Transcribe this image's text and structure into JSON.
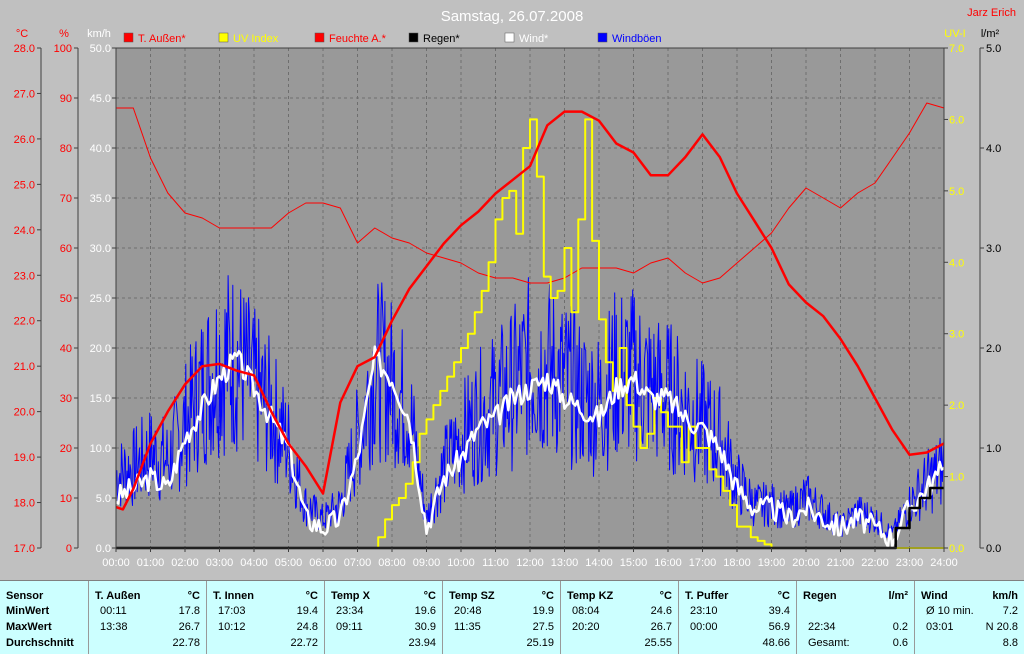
{
  "title": "Samstag, 26.07.2008",
  "author": "Jarz Erich",
  "legend": [
    {
      "label": "T. Außen*",
      "color": "#ff0000"
    },
    {
      "label": "UV Index",
      "color": "#ffff00"
    },
    {
      "label": "Feuchte A.*",
      "color": "#ff0000"
    },
    {
      "label": "Regen*",
      "color": "#000000"
    },
    {
      "label": "Wind*",
      "color": "#ffffff"
    },
    {
      "label": "Windböen",
      "color": "#0000ff"
    }
  ],
  "axes": {
    "temp": {
      "unit": "°C",
      "min": 17,
      "max": 28,
      "ticks": [
        "17.0",
        "18.0",
        "19.0",
        "20.0",
        "21.0",
        "22.0",
        "23.0",
        "24.0",
        "25.0",
        "26.0",
        "27.0",
        "28.0"
      ],
      "color": "#ff0000"
    },
    "hum": {
      "unit": "%",
      "min": 0,
      "max": 100,
      "ticks": [
        "0",
        "10",
        "20",
        "30",
        "40",
        "50",
        "60",
        "70",
        "80",
        "90",
        "100"
      ],
      "color": "#ff0000"
    },
    "wind": {
      "unit": "km/h",
      "min": 0,
      "max": 50,
      "ticks": [
        "0.0",
        "5.0",
        "10.0",
        "15.0",
        "20.0",
        "25.0",
        "30.0",
        "35.0",
        "40.0",
        "45.0",
        "50.0"
      ],
      "color": "#ffffff"
    },
    "uv": {
      "unit": "UV-I",
      "min": 0,
      "max": 7,
      "ticks": [
        "0.0",
        "1.0",
        "2.0",
        "3.0",
        "4.0",
        "5.0",
        "6.0",
        "7.0"
      ],
      "color": "#ffff00"
    },
    "rain": {
      "unit": "l/m²",
      "min": 0,
      "max": 5,
      "ticks": [
        "0.0",
        "1.0",
        "2.0",
        "3.0",
        "4.0",
        "5.0"
      ],
      "color": "#000000"
    },
    "x_ticks": [
      "00:00",
      "01:00",
      "02:00",
      "03:00",
      "04:00",
      "05:00",
      "06:00",
      "07:00",
      "08:00",
      "09:00",
      "10:00",
      "11:00",
      "12:00",
      "13:00",
      "14:00",
      "15:00",
      "16:00",
      "17:00",
      "18:00",
      "19:00",
      "20:00",
      "21:00",
      "22:00",
      "23:00",
      "24:00"
    ]
  },
  "chart_data": {
    "type": "line",
    "x_unit": "hour",
    "grid": true,
    "series": [
      {
        "name": "T. Außen*",
        "axis": "temp",
        "color": "#ff0000",
        "width": 2.5,
        "x": [
          0,
          0.2,
          0.5,
          1,
          1.5,
          2,
          2.5,
          3,
          3.5,
          4,
          4.5,
          5,
          5.5,
          6,
          6.5,
          7,
          7.5,
          8,
          8.5,
          9,
          9.5,
          10,
          10.5,
          11,
          11.5,
          12,
          12.5,
          13,
          13.5,
          14,
          14.5,
          15,
          15.5,
          16,
          16.5,
          17,
          17.5,
          18,
          18.5,
          19,
          19.5,
          20,
          20.5,
          21,
          21.5,
          22,
          22.5,
          23,
          23.5,
          24
        ],
        "y": [
          17.9,
          17.85,
          18.3,
          19.3,
          20.0,
          20.6,
          21.0,
          21.05,
          20.9,
          20.8,
          20.0,
          19.3,
          18.8,
          18.2,
          20.2,
          21.0,
          21.2,
          22.0,
          22.7,
          23.2,
          23.7,
          24.1,
          24.4,
          24.8,
          25.1,
          25.4,
          26.3,
          26.6,
          26.6,
          26.4,
          25.9,
          25.7,
          25.2,
          25.2,
          25.6,
          26.1,
          25.6,
          24.8,
          24.2,
          23.6,
          22.8,
          22.4,
          22.1,
          21.6,
          21.0,
          20.3,
          19.6,
          19.05,
          19.1,
          19.3
        ]
      },
      {
        "name": "Feuchte A.*",
        "axis": "hum",
        "color": "#ff0000",
        "width": 1,
        "x": [
          0,
          0.5,
          1,
          1.5,
          2,
          2.5,
          3,
          3.5,
          4,
          4.5,
          5,
          5.5,
          6,
          6.5,
          7,
          7.5,
          8,
          8.5,
          9,
          9.5,
          10,
          10.5,
          11,
          11.5,
          12,
          12.5,
          13,
          13.5,
          14,
          14.5,
          15,
          15.5,
          16,
          16.5,
          17,
          17.5,
          18,
          18.5,
          19,
          19.5,
          20,
          20.5,
          21,
          21.5,
          22,
          22.5,
          23,
          23.5,
          24
        ],
        "y": [
          88,
          88,
          78,
          71,
          67,
          66,
          64,
          64,
          64,
          64,
          67,
          69,
          69,
          68,
          61,
          64,
          62,
          61,
          59,
          58,
          57,
          55,
          54,
          54,
          53,
          53,
          54,
          56,
          56,
          56,
          55,
          57,
          58,
          55,
          53,
          54,
          57,
          60,
          63,
          68,
          72,
          70,
          68,
          71,
          73,
          78,
          83,
          89,
          88
        ]
      },
      {
        "name": "Wind*",
        "axis": "wind",
        "color": "#ffffff",
        "width": 2.5,
        "x": [
          0,
          0.5,
          1,
          1.5,
          2,
          2.5,
          3,
          3.5,
          4,
          4.5,
          5,
          5.5,
          6,
          6.5,
          7,
          7.5,
          8,
          8.5,
          9,
          9.5,
          10,
          10.5,
          11,
          11.5,
          12,
          12.5,
          13,
          13.5,
          14,
          14.5,
          15,
          15.5,
          16,
          16.5,
          17,
          17.5,
          18,
          18.5,
          19,
          19.5,
          20,
          20.5,
          21,
          21.5,
          22,
          22.5,
          23,
          23.5,
          24
        ],
        "y": [
          5,
          6,
          7,
          6,
          11,
          14,
          17,
          19,
          16,
          13,
          10,
          3,
          2,
          3,
          9,
          19,
          17,
          13,
          2,
          7,
          9,
          12,
          13,
          15,
          16,
          17,
          15,
          14,
          13,
          16,
          17,
          15,
          15,
          13,
          12,
          10,
          6,
          4,
          4,
          3,
          4,
          3,
          2,
          3,
          2,
          1,
          4,
          6,
          8
        ]
      },
      {
        "name": "UV Index",
        "axis": "uv",
        "color": "#ffff00",
        "width": 2,
        "step": true,
        "x": [
          0,
          7.4,
          7.6,
          7.8,
          8,
          8.2,
          8.4,
          8.6,
          8.8,
          9,
          9.2,
          9.4,
          9.6,
          9.8,
          10,
          10.2,
          10.4,
          10.6,
          10.8,
          11,
          11.2,
          11.4,
          11.6,
          11.8,
          12,
          12.2,
          12.4,
          12.6,
          12.8,
          13,
          13.2,
          13.4,
          13.6,
          13.8,
          14,
          14.2,
          14.4,
          14.6,
          14.8,
          15,
          15.2,
          15.4,
          15.6,
          15.8,
          16,
          16.2,
          16.4,
          16.6,
          16.8,
          17,
          17.2,
          17.4,
          17.6,
          17.8,
          18,
          18.2,
          18.4,
          18.6,
          18.8,
          19,
          24
        ],
        "y": [
          0,
          0,
          0.15,
          0.4,
          0.6,
          0.7,
          0.9,
          1.2,
          1.6,
          1.8,
          2.0,
          2.2,
          2.4,
          2.6,
          2.8,
          3.0,
          3.3,
          3.6,
          4.0,
          4.6,
          4.9,
          5.0,
          4.4,
          5.6,
          6.0,
          5.2,
          3.8,
          3.5,
          3.6,
          4.2,
          3.3,
          4.6,
          6.0,
          4.3,
          3.2,
          2.6,
          2.2,
          2.8,
          2.0,
          1.7,
          1.4,
          1.6,
          2.1,
          1.9,
          1.7,
          1.7,
          1.2,
          1.7,
          1.4,
          1.4,
          1.1,
          1.0,
          0.8,
          0.6,
          0.3,
          0.3,
          0.15,
          0.1,
          0.05,
          0,
          0
        ]
      },
      {
        "name": "Regen*",
        "axis": "rain",
        "color": "#000000",
        "width": 2.5,
        "step": true,
        "x": [
          0,
          22.34,
          22.6,
          23,
          23.3,
          23.6,
          24
        ],
        "y": [
          0,
          0,
          0.2,
          0.4,
          0.5,
          0.6,
          0.6
        ]
      },
      {
        "name": "Windböen",
        "axis": "wind",
        "color": "#0000ff",
        "width": 1,
        "gust": true,
        "x": [
          0,
          0.5,
          1,
          1.5,
          2,
          2.5,
          3,
          3.5,
          4,
          4.5,
          5,
          5.5,
          6,
          6.5,
          7,
          7.5,
          8,
          8.5,
          9,
          9.5,
          10,
          10.5,
          11,
          11.5,
          12,
          12.5,
          13,
          13.5,
          14,
          14.5,
          15,
          15.5,
          16,
          16.5,
          17,
          17.5,
          18,
          18.5,
          19,
          19.5,
          20,
          20.5,
          21,
          21.5,
          22,
          22.5,
          23,
          23.5,
          24
        ],
        "y": [
          10,
          11,
          13,
          12,
          17,
          22,
          26,
          26,
          22,
          19,
          14,
          6,
          4,
          6,
          15,
          25,
          23,
          19,
          4,
          11,
          15,
          18,
          20,
          22,
          25,
          25,
          23,
          21,
          20,
          24,
          24,
          22,
          21,
          19,
          17,
          15,
          9,
          6,
          6,
          5,
          7,
          5,
          3,
          5,
          4,
          2,
          6,
          9,
          11
        ]
      }
    ]
  },
  "stats": {
    "labels": {
      "title": "Sensor",
      "min": "MinWert",
      "max": "MaxWert",
      "avg": "Durchschnitt"
    },
    "columns": [
      {
        "name": "T. Außen",
        "unit": "°C",
        "min_time": "00:11",
        "min_val": "17.8",
        "max_time": "13:38",
        "max_val": "26.7",
        "avg": "22.78"
      },
      {
        "name": "T. Innen",
        "unit": "°C",
        "min_time": "17:03",
        "min_val": "19.4",
        "max_time": "10:12",
        "max_val": "24.8",
        "avg": "22.72"
      },
      {
        "name": "Temp X",
        "unit": "°C",
        "min_time": "23:34",
        "min_val": "19.6",
        "max_time": "09:11",
        "max_val": "30.9",
        "avg": "23.94"
      },
      {
        "name": "Temp SZ",
        "unit": "°C",
        "min_time": "20:48",
        "min_val": "19.9",
        "max_time": "11:35",
        "max_val": "27.5",
        "avg": "25.19"
      },
      {
        "name": "Temp KZ",
        "unit": "°C",
        "min_time": "08:04",
        "min_val": "24.6",
        "max_time": "20:20",
        "max_val": "26.7",
        "avg": "25.55"
      },
      {
        "name": "T. Puffer",
        "unit": "°C",
        "min_time": "23:10",
        "min_val": "39.4",
        "max_time": "00:00",
        "max_val": "56.9",
        "avg": "48.66"
      },
      {
        "name": "Regen",
        "unit": "l/m²",
        "min_time": "",
        "min_val": "",
        "max_time": "22:34",
        "max_val": "0.2",
        "avg_label": "Gesamt:",
        "avg": "0.6"
      },
      {
        "name": "Wind",
        "unit": "km/h",
        "min_time": "Ø 10 min.",
        "min_val": "7.2",
        "max_time": "03:01",
        "max_val": "N 20.8",
        "avg": "8.8"
      }
    ]
  }
}
